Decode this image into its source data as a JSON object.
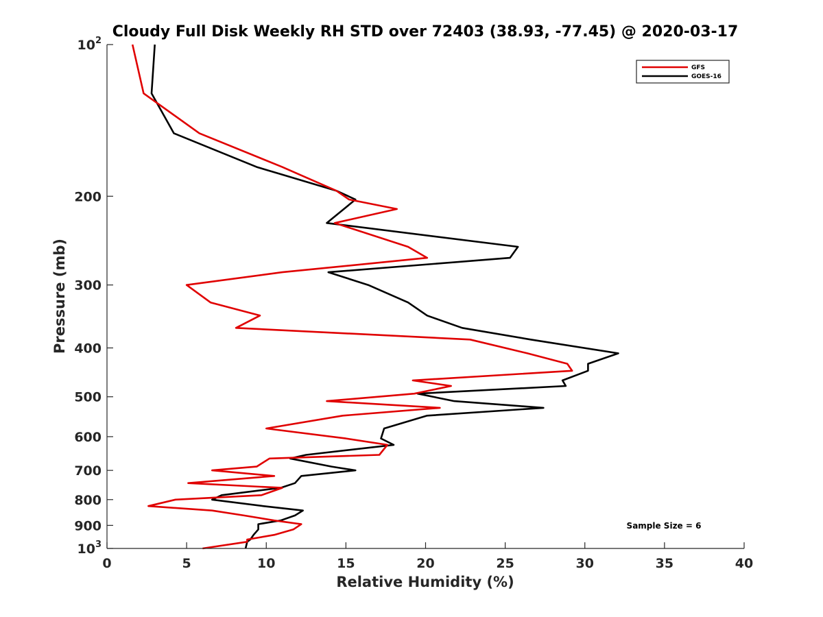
{
  "chart_data": {
    "type": "line",
    "title": "Cloudy Full Disk Weekly RH STD over 72403 (38.93, -77.45) @ 2020-03-17",
    "xlabel": "Relative Humidity (%)",
    "ylabel": "Pressure (mb)",
    "xlim": [
      0,
      40
    ],
    "ylim": [
      100,
      1000
    ],
    "y_scale": "log",
    "y_reversed": true,
    "x_ticks": [
      "0",
      "5",
      "10",
      "15",
      "20",
      "25",
      "30",
      "35",
      "40"
    ],
    "y_ticks": [
      {
        "value": 100,
        "base": "10",
        "exp": "2"
      },
      {
        "value": 200,
        "label": "200"
      },
      {
        "value": 300,
        "label": "300"
      },
      {
        "value": 400,
        "label": "400"
      },
      {
        "value": 500,
        "label": "500"
      },
      {
        "value": 600,
        "label": "600"
      },
      {
        "value": 700,
        "label": "700"
      },
      {
        "value": 800,
        "label": "800"
      },
      {
        "value": 900,
        "label": "900"
      },
      {
        "value": 1000,
        "base": "10",
        "exp": "3"
      }
    ],
    "legend_position": "top-right",
    "annotation": "Sample Size = 6",
    "series": [
      {
        "name": "GFS",
        "color": "#e00000",
        "points": [
          [
            1.6,
            100
          ],
          [
            2.3,
            125
          ],
          [
            5.8,
            150
          ],
          [
            11.0,
            175
          ],
          [
            14.4,
            195
          ],
          [
            15.2,
            203
          ],
          [
            18.2,
            212
          ],
          [
            14.3,
            226
          ],
          [
            18.9,
            252
          ],
          [
            20.1,
            265
          ],
          [
            11.0,
            283
          ],
          [
            5.0,
            300
          ],
          [
            6.5,
            325
          ],
          [
            9.6,
            345
          ],
          [
            8.1,
            365
          ],
          [
            22.8,
            385
          ],
          [
            26.4,
            410
          ],
          [
            28.9,
            430
          ],
          [
            29.2,
            444
          ],
          [
            19.2,
            464
          ],
          [
            21.6,
            476
          ],
          [
            19.3,
            493
          ],
          [
            13.8,
            510
          ],
          [
            20.9,
            526
          ],
          [
            14.8,
            545
          ],
          [
            10.0,
            578
          ],
          [
            15.0,
            605
          ],
          [
            17.6,
            623
          ],
          [
            17.1,
            652
          ],
          [
            10.2,
            663
          ],
          [
            9.4,
            688
          ],
          [
            6.6,
            700
          ],
          [
            10.5,
            718
          ],
          [
            5.1,
            742
          ],
          [
            11.0,
            758
          ],
          [
            9.7,
            784
          ],
          [
            4.3,
            800
          ],
          [
            2.6,
            824
          ],
          [
            6.6,
            841
          ],
          [
            8.6,
            860
          ],
          [
            10.5,
            880
          ],
          [
            12.2,
            895
          ],
          [
            11.7,
            917
          ],
          [
            10.5,
            940
          ],
          [
            8.8,
            960
          ],
          [
            8.8,
            970
          ],
          [
            6.0,
            1000
          ]
        ]
      },
      {
        "name": "GOES-16",
        "color": "#000000",
        "points": [
          [
            3.0,
            100
          ],
          [
            2.8,
            125
          ],
          [
            4.2,
            150
          ],
          [
            9.4,
            175
          ],
          [
            14.4,
            195
          ],
          [
            15.6,
            203
          ],
          [
            13.8,
            226
          ],
          [
            25.8,
            252
          ],
          [
            25.3,
            265
          ],
          [
            13.9,
            283
          ],
          [
            16.4,
            300
          ],
          [
            18.9,
            325
          ],
          [
            20.1,
            345
          ],
          [
            22.3,
            365
          ],
          [
            26.6,
            385
          ],
          [
            32.1,
            410
          ],
          [
            30.2,
            430
          ],
          [
            30.2,
            444
          ],
          [
            28.6,
            464
          ],
          [
            28.8,
            476
          ],
          [
            19.5,
            493
          ],
          [
            21.8,
            510
          ],
          [
            27.4,
            526
          ],
          [
            20.1,
            545
          ],
          [
            17.4,
            578
          ],
          [
            17.2,
            605
          ],
          [
            18.0,
            623
          ],
          [
            12.5,
            652
          ],
          [
            11.5,
            663
          ],
          [
            14.1,
            688
          ],
          [
            15.6,
            700
          ],
          [
            12.2,
            718
          ],
          [
            11.8,
            742
          ],
          [
            10.9,
            758
          ],
          [
            7.2,
            784
          ],
          [
            6.6,
            800
          ],
          [
            9.8,
            824
          ],
          [
            12.3,
            841
          ],
          [
            11.8,
            860
          ],
          [
            10.9,
            880
          ],
          [
            9.5,
            895
          ],
          [
            9.5,
            917
          ],
          [
            9.2,
            940
          ],
          [
            9.0,
            960
          ],
          [
            8.8,
            970
          ],
          [
            8.7,
            1000
          ]
        ]
      }
    ]
  }
}
